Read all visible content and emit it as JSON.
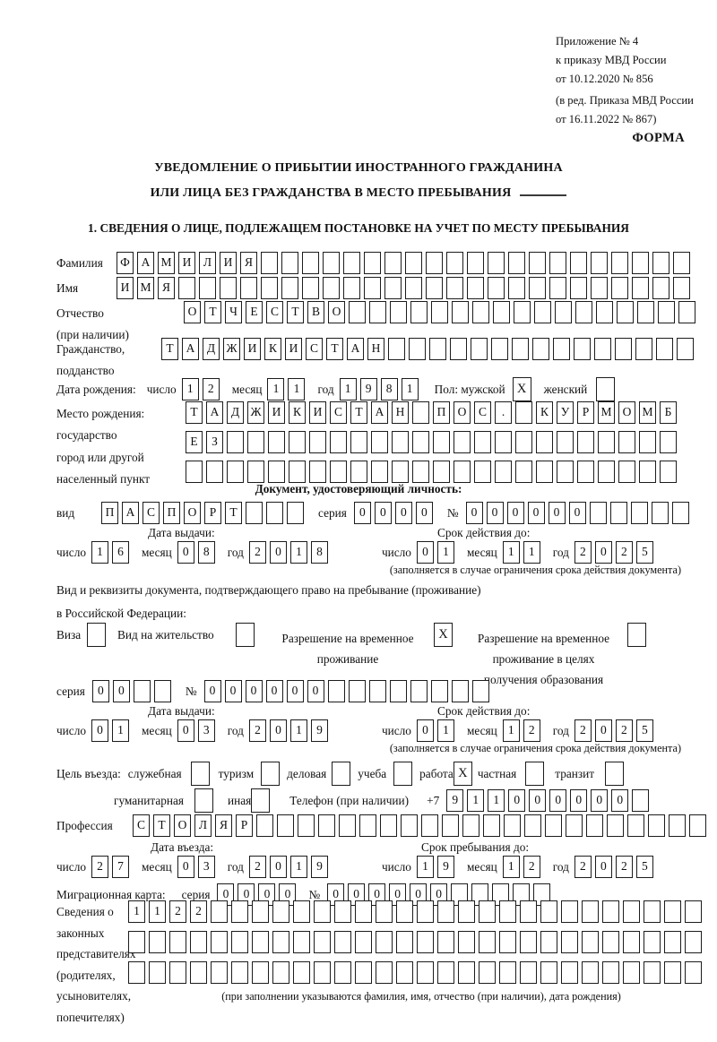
{
  "header": {
    "lines": [
      "Приложение № 4",
      "к приказу МВД России",
      "от 10.12.2020 № 856",
      "(в ред. Приказа МВД России",
      "от 16.11.2022 № 867)"
    ],
    "forma": "ФОРМА"
  },
  "title": {
    "line1": "УВЕДОМЛЕНИЕ О ПРИБЫТИИ ИНОСТРАННОГО ГРАЖДАНИНА",
    "line2": "ИЛИ ЛИЦА БЕЗ ГРАЖДАНСТВА В МЕСТО ПРЕБЫВАНИЯ"
  },
  "section1_heading": "1. СВЕДЕНИЯ О ЛИЦЕ, ПОДЛЕЖАЩЕМ ПОСТАНОВКЕ НА УЧЕТ ПО МЕСТУ ПРЕБЫВАНИЯ",
  "surname": {
    "label": "Фамилия",
    "cells": {
      "text": "ФАМИЛИЯ",
      "count": 28
    }
  },
  "firstname": {
    "label": "Имя",
    "cells": {
      "text": "ИМЯ",
      "count": 28
    }
  },
  "patronymic": {
    "label1": "Отчество",
    "label2": "(при наличии)",
    "cells": {
      "text": "ОТЧЕСТВО",
      "count": 25
    }
  },
  "citizenship": {
    "label1": "Гражданство,",
    "label2": "подданство",
    "cells": {
      "text": "ТАДЖИКИСТАН",
      "count": 26
    }
  },
  "birth": {
    "label": "Дата рождения:",
    "day_label": "число",
    "day": {
      "text": "12",
      "count": 2
    },
    "month_label": "месяц",
    "month": {
      "text": "11",
      "count": 2
    },
    "year_label": "год",
    "year": {
      "text": "1981",
      "count": 4
    },
    "sex_label": "Пол: мужской",
    "male_mark": "X",
    "female_label": "женский",
    "female_mark": ""
  },
  "birthplace": {
    "labels": [
      "Место рождения:",
      "государство",
      "город или другой",
      "населенный пункт"
    ],
    "row1": {
      "text": "ТАДЖИКИСТАН ПОС. КУРМОМБ",
      "count": 24
    },
    "row2": {
      "text": "ЕЗ",
      "count": 24
    },
    "row3": {
      "text": "",
      "count": 24
    }
  },
  "identity_doc": {
    "heading": "Документ, удостоверяющий личность:",
    "kind_label": "вид",
    "kind": {
      "text": "ПАСПОРТ",
      "count": 10
    },
    "series_label": "серия",
    "series": {
      "text": "0000",
      "count": 4
    },
    "number_label": "№",
    "number": {
      "text": "000000",
      "count": 11
    },
    "issued_label": "Дата выдачи:",
    "valid_label": "Срок действия до:",
    "issued": {
      "day_label": "число",
      "day": {
        "text": "16",
        "count": 2
      },
      "month_label": "месяц",
      "month": {
        "text": "08",
        "count": 2
      },
      "year_label": "год",
      "year": {
        "text": "2018",
        "count": 4
      }
    },
    "valid": {
      "day_label": "число",
      "day": {
        "text": "01",
        "count": 2
      },
      "month_label": "месяц",
      "month": {
        "text": "11",
        "count": 2
      },
      "year_label": "год",
      "year": {
        "text": "2025",
        "count": 4
      }
    },
    "note": "(заполняется в случае ограничения срока действия документа)"
  },
  "residence_doc": {
    "intro1": "Вид и реквизиты документа, подтверждающего право на пребывание (проживание)",
    "intro2": "в Российской Федерации:",
    "opt_visa": {
      "label": "Виза",
      "mark": ""
    },
    "opt_residence": {
      "label": "Вид на жительство",
      "mark": ""
    },
    "opt_temp": {
      "line1": "Разрешение на временное",
      "line2": "проживание",
      "mark": "X"
    },
    "opt_edu": {
      "line1": "Разрешение на временное",
      "line2": "проживание в целях",
      "line3": "получения образования",
      "mark": ""
    },
    "series_label": "серия",
    "series": {
      "text": "00",
      "count": 4
    },
    "number_label": "№",
    "number": {
      "text": "000000",
      "count": 14
    },
    "issued_label": "Дата выдачи:",
    "valid_label": "Срок действия до:",
    "issued": {
      "day_label": "число",
      "day": {
        "text": "01",
        "count": 2
      },
      "month_label": "месяц",
      "month": {
        "text": "03",
        "count": 2
      },
      "year_label": "год",
      "year": {
        "text": "2019",
        "count": 4
      }
    },
    "valid": {
      "day_label": "число",
      "day": {
        "text": "01",
        "count": 2
      },
      "month_label": "месяц",
      "month": {
        "text": "12",
        "count": 2
      },
      "year_label": "год",
      "year": {
        "text": "2025",
        "count": 4
      }
    },
    "note": "(заполняется в случае ограничения срока действия документа)"
  },
  "visit": {
    "label": "Цель въезда:",
    "options": [
      {
        "label": "служебная",
        "mark": ""
      },
      {
        "label": "туризм",
        "mark": ""
      },
      {
        "label": "деловая",
        "mark": ""
      },
      {
        "label": "учеба",
        "mark": ""
      },
      {
        "label": "работа",
        "mark": "X"
      },
      {
        "label": "частная",
        "mark": ""
      },
      {
        "label": "транзит",
        "mark": ""
      },
      {
        "label": "гуманитарная",
        "mark": ""
      },
      {
        "label": "иная",
        "mark": ""
      }
    ],
    "phone_label": "Телефон (при наличии)",
    "phone_prefix": "+7",
    "phone": {
      "text": "911000000",
      "count": 10
    }
  },
  "profession": {
    "label": "Профессия",
    "cells": {
      "text": "СТОЛЯР",
      "count": 28
    }
  },
  "entry": {
    "entry_label": "Дата въезда:",
    "stay_label": "Срок пребывания до:",
    "entry_date": {
      "day_label": "число",
      "day": {
        "text": "27",
        "count": 2
      },
      "month_label": "месяц",
      "month": {
        "text": "03",
        "count": 2
      },
      "year_label": "год",
      "year": {
        "text": "2019",
        "count": 4
      }
    },
    "stay_date": {
      "day_label": "число",
      "day": {
        "text": "19",
        "count": 2
      },
      "month_label": "месяц",
      "month": {
        "text": "12",
        "count": 2
      },
      "year_label": "год",
      "year": {
        "text": "2025",
        "count": 4
      }
    }
  },
  "migration_card": {
    "label": "Миграционная карта:",
    "series_label": "серия",
    "series": {
      "text": "0000",
      "count": 4
    },
    "number_label": "№",
    "number": {
      "text": "000000",
      "count": 11
    }
  },
  "representatives": {
    "labels": [
      "Сведения о",
      "законных",
      "представителях",
      "(родителях,",
      "усыновителях,",
      "попечителях)"
    ],
    "row1": {
      "text": "1122",
      "count": 28
    },
    "row2": {
      "text": "",
      "count": 28
    },
    "row3": {
      "text": "",
      "count": 28
    },
    "note": "(при заполнении указываются фамилия, имя, отчество (при наличии), дата рождения)"
  }
}
